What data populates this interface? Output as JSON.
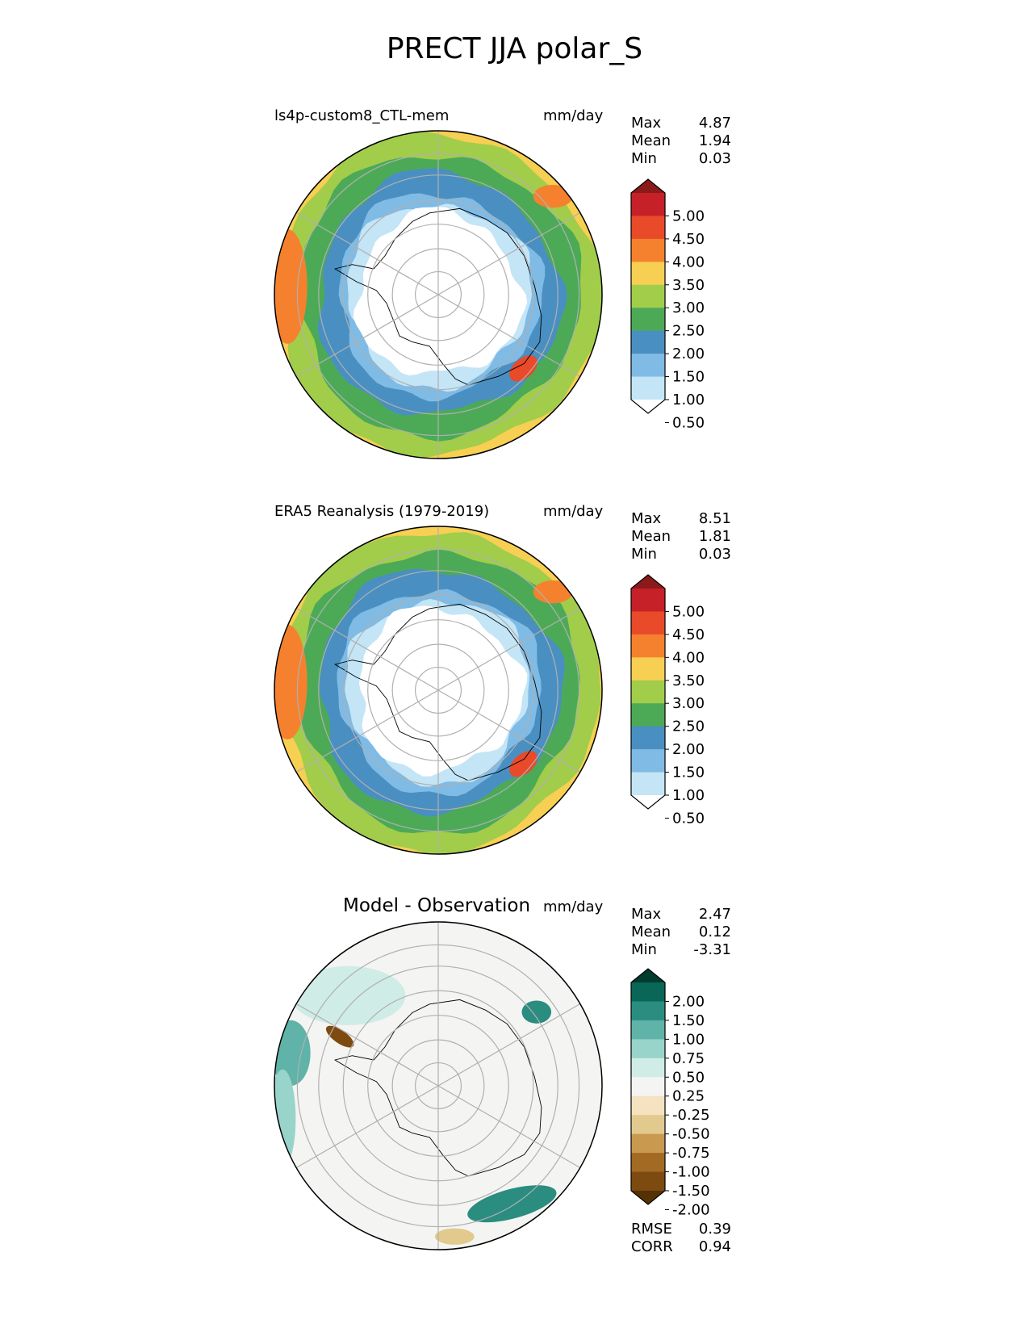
{
  "figure": {
    "title": "PRECT JJA polar_S"
  },
  "chart_data": [
    {
      "type": "heatmap",
      "projection": "south-polar-stereographic",
      "title": "ls4p-custom8_CTL-mem",
      "units": "mm/day",
      "stats": [
        {
          "label": "Max",
          "value": "4.87"
        },
        {
          "label": "Mean",
          "value": "1.94"
        },
        {
          "label": "Min",
          "value": "0.03"
        }
      ],
      "colorbar": {
        "extend": "both",
        "ticks": [
          "5.00",
          "4.50",
          "4.00",
          "3.50",
          "3.00",
          "2.50",
          "2.00",
          "1.50",
          "1.00",
          "0.50"
        ],
        "colors": [
          "#8b1a1a",
          "#c62128",
          "#e84a2a",
          "#f5812e",
          "#f7cf52",
          "#a1cd4b",
          "#4caa57",
          "#4a8fc1",
          "#7fbbe5",
          "#c3e5f6",
          "#ffffff"
        ]
      }
    },
    {
      "type": "heatmap",
      "projection": "south-polar-stereographic",
      "title": "ERA5 Reanalysis (1979-2019)",
      "units": "mm/day",
      "stats": [
        {
          "label": "Max",
          "value": "8.51"
        },
        {
          "label": "Mean",
          "value": "1.81"
        },
        {
          "label": "Min",
          "value": "0.03"
        }
      ],
      "colorbar": {
        "extend": "both",
        "ticks": [
          "5.00",
          "4.50",
          "4.00",
          "3.50",
          "3.00",
          "2.50",
          "2.00",
          "1.50",
          "1.00",
          "0.50"
        ],
        "colors": [
          "#8b1a1a",
          "#c62128",
          "#e84a2a",
          "#f5812e",
          "#f7cf52",
          "#a1cd4b",
          "#4caa57",
          "#4a8fc1",
          "#7fbbe5",
          "#c3e5f6",
          "#ffffff"
        ]
      }
    },
    {
      "type": "heatmap",
      "projection": "south-polar-stereographic",
      "title": "Model - Observation",
      "units": "mm/day",
      "stats": [
        {
          "label": "Max",
          "value": "2.47"
        },
        {
          "label": "Mean",
          "value": "0.12"
        },
        {
          "label": "Min",
          "value": "-3.31"
        }
      ],
      "metrics": [
        {
          "label": "RMSE",
          "value": "0.39"
        },
        {
          "label": "CORR",
          "value": "0.94"
        }
      ],
      "colorbar": {
        "extend": "both",
        "ticks": [
          "2.00",
          "1.50",
          "1.00",
          "0.75",
          "0.50",
          "0.25",
          "-0.25",
          "-0.50",
          "-0.75",
          "-1.00",
          "-1.50",
          "-2.00"
        ],
        "colors": [
          "#013c2e",
          "#0a6657",
          "#2a8d80",
          "#5fb3a8",
          "#98d4c9",
          "#cfece6",
          "#f4f4f2",
          "#f4e2c0",
          "#e2c98e",
          "#c8994f",
          "#a26a23",
          "#7d4a0f",
          "#553205"
        ]
      }
    }
  ]
}
